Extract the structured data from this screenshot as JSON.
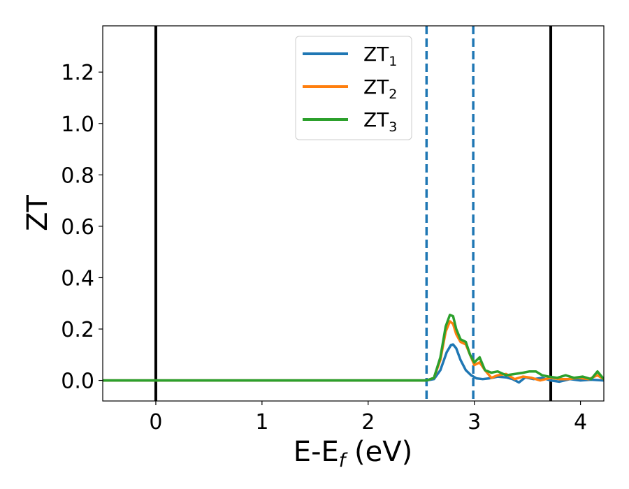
{
  "chart_data": {
    "type": "line",
    "xlabel": {
      "main": "E-E",
      "sub": "f",
      "unit": " (eV)"
    },
    "ylabel": "ZT",
    "xlim": [
      -0.5,
      4.22
    ],
    "ylim": [
      -0.08,
      1.38
    ],
    "x_ticks": [
      0,
      1,
      2,
      3,
      4
    ],
    "x_tick_labels": [
      "0",
      "1",
      "2",
      "3",
      "4"
    ],
    "y_ticks": [
      0.0,
      0.2,
      0.4,
      0.6,
      0.8,
      1.0,
      1.2
    ],
    "y_tick_labels": [
      "0.0",
      "0.2",
      "0.4",
      "0.6",
      "0.8",
      "1.0",
      "1.2"
    ],
    "grid": false,
    "legend_position": "top-center",
    "vertical_lines": [
      {
        "x": 0.0,
        "style": "solid",
        "color": "#000000"
      },
      {
        "x": 3.72,
        "style": "solid",
        "color": "#000000"
      },
      {
        "x": 2.55,
        "style": "dashed",
        "color": "#1f77b4"
      },
      {
        "x": 2.99,
        "style": "dashed",
        "color": "#1f77b4"
      }
    ],
    "series": [
      {
        "name": "ZT",
        "sub": "1",
        "color": "#1f77b4",
        "x": [
          -0.5,
          2.55,
          2.62,
          2.68,
          2.74,
          2.78,
          2.8,
          2.83,
          2.87,
          2.92,
          2.97,
          3.02,
          3.08,
          3.14,
          3.22,
          3.3,
          3.36,
          3.42,
          3.48,
          3.56,
          3.64,
          3.72,
          3.8,
          3.9,
          4.0,
          4.1,
          4.22
        ],
        "y": [
          0.0,
          0.0,
          0.005,
          0.04,
          0.11,
          0.138,
          0.14,
          0.125,
          0.08,
          0.04,
          0.02,
          0.008,
          0.005,
          0.008,
          0.015,
          0.012,
          0.005,
          -0.008,
          0.012,
          0.005,
          0.01,
          0.0,
          -0.005,
          0.005,
          0.0,
          0.003,
          0.0
        ]
      },
      {
        "name": "ZT",
        "sub": "2",
        "color": "#ff7f0e",
        "x": [
          -0.5,
          2.55,
          2.62,
          2.68,
          2.73,
          2.77,
          2.8,
          2.83,
          2.87,
          2.92,
          2.96,
          3.0,
          3.05,
          3.1,
          3.16,
          3.22,
          3.3,
          3.38,
          3.46,
          3.54,
          3.62,
          3.72,
          3.8,
          3.88,
          3.98,
          4.08,
          4.16,
          4.22
        ],
        "y": [
          0.0,
          0.0,
          0.01,
          0.08,
          0.19,
          0.23,
          0.22,
          0.18,
          0.15,
          0.14,
          0.1,
          0.06,
          0.07,
          0.04,
          0.01,
          0.02,
          0.025,
          0.005,
          0.015,
          0.01,
          0.0,
          0.01,
          0.005,
          0.005,
          0.01,
          0.005,
          0.02,
          0.005
        ]
      },
      {
        "name": "ZT",
        "sub": "3",
        "color": "#2ca02c",
        "x": [
          -0.5,
          2.55,
          2.62,
          2.68,
          2.73,
          2.77,
          2.8,
          2.83,
          2.87,
          2.92,
          2.96,
          3.0,
          3.05,
          3.1,
          3.16,
          3.22,
          3.3,
          3.38,
          3.46,
          3.52,
          3.58,
          3.64,
          3.7,
          3.78,
          3.86,
          3.94,
          4.02,
          4.1,
          4.16,
          4.22
        ],
        "y": [
          0.0,
          0.0,
          0.01,
          0.09,
          0.21,
          0.255,
          0.25,
          0.2,
          0.16,
          0.15,
          0.1,
          0.07,
          0.09,
          0.04,
          0.03,
          0.035,
          0.02,
          0.025,
          0.03,
          0.035,
          0.035,
          0.02,
          0.015,
          0.01,
          0.02,
          0.01,
          0.015,
          0.005,
          0.035,
          0.005
        ]
      }
    ]
  }
}
